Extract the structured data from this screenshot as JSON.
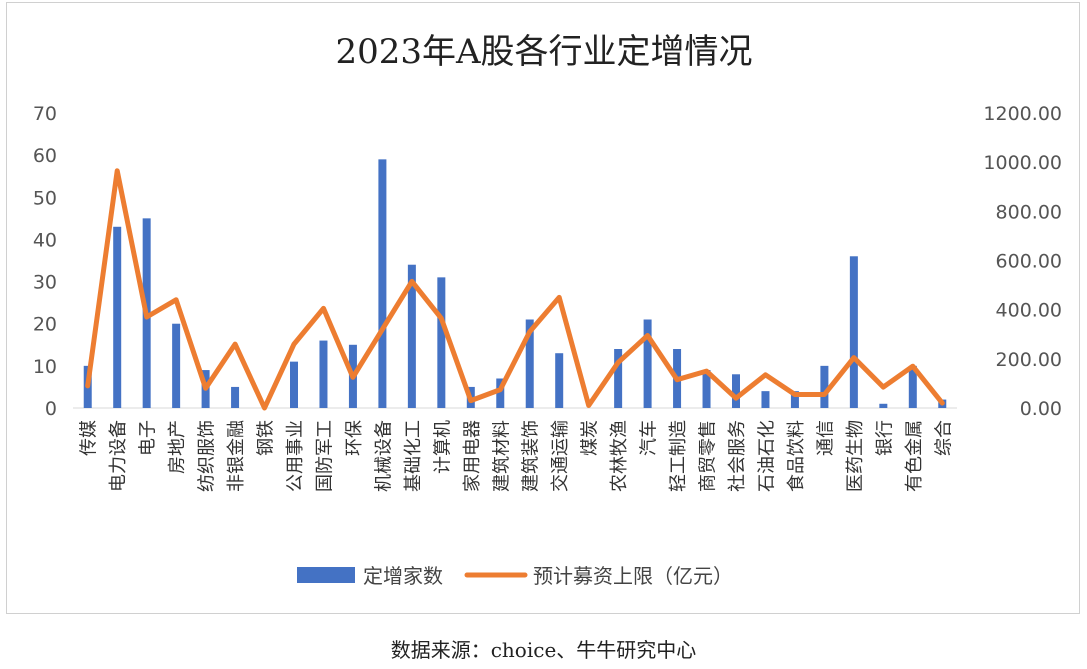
{
  "chart_data": {
    "type": "bar+line",
    "title": "2023年A股各行业定增情况",
    "categories": [
      "传媒",
      "电力设备",
      "电子",
      "房地产",
      "纺织服饰",
      "非银金融",
      "钢铁",
      "公用事业",
      "国防军工",
      "环保",
      "机械设备",
      "基础化工",
      "计算机",
      "家用电器",
      "建筑材料",
      "建筑装饰",
      "交通运输",
      "煤炭",
      "农林牧渔",
      "汽车",
      "轻工制造",
      "商贸零售",
      "社会服务",
      "石油石化",
      "食品饮料",
      "通信",
      "医药生物",
      "银行",
      "有色金属",
      "综合"
    ],
    "series": [
      {
        "name": "定增家数",
        "type": "bar",
        "axis": "left",
        "color": "#4472C4",
        "values": [
          10,
          43,
          45,
          20,
          9,
          5,
          0,
          11,
          16,
          15,
          59,
          34,
          31,
          5,
          7,
          21,
          13,
          0,
          14,
          21,
          14,
          9,
          8,
          4,
          4,
          10,
          36,
          1,
          10,
          2
        ]
      },
      {
        "name": "预计募资上限（亿元）",
        "type": "line",
        "axis": "right",
        "color": "#ED7D31",
        "values": [
          90,
          965,
          370,
          440,
          80,
          260,
          0,
          260,
          405,
          125,
          320,
          515,
          365,
          30,
          75,
          310,
          450,
          10,
          185,
          295,
          115,
          150,
          40,
          135,
          55,
          55,
          205,
          85,
          170,
          20
        ]
      }
    ],
    "left_axis": {
      "min": 0,
      "max": 70,
      "step": 10,
      "tick_labels": [
        "0",
        "10",
        "20",
        "30",
        "40",
        "50",
        "60",
        "70"
      ]
    },
    "right_axis": {
      "min": 0,
      "max": 1200,
      "step": 200,
      "tick_labels": [
        "0.00",
        "200.00",
        "400.00",
        "600.00",
        "800.00",
        "1000.00",
        "1200.00"
      ]
    },
    "grid": false,
    "legend_position": "bottom"
  },
  "source_note": "数据来源：choice、牛牛研究中心"
}
